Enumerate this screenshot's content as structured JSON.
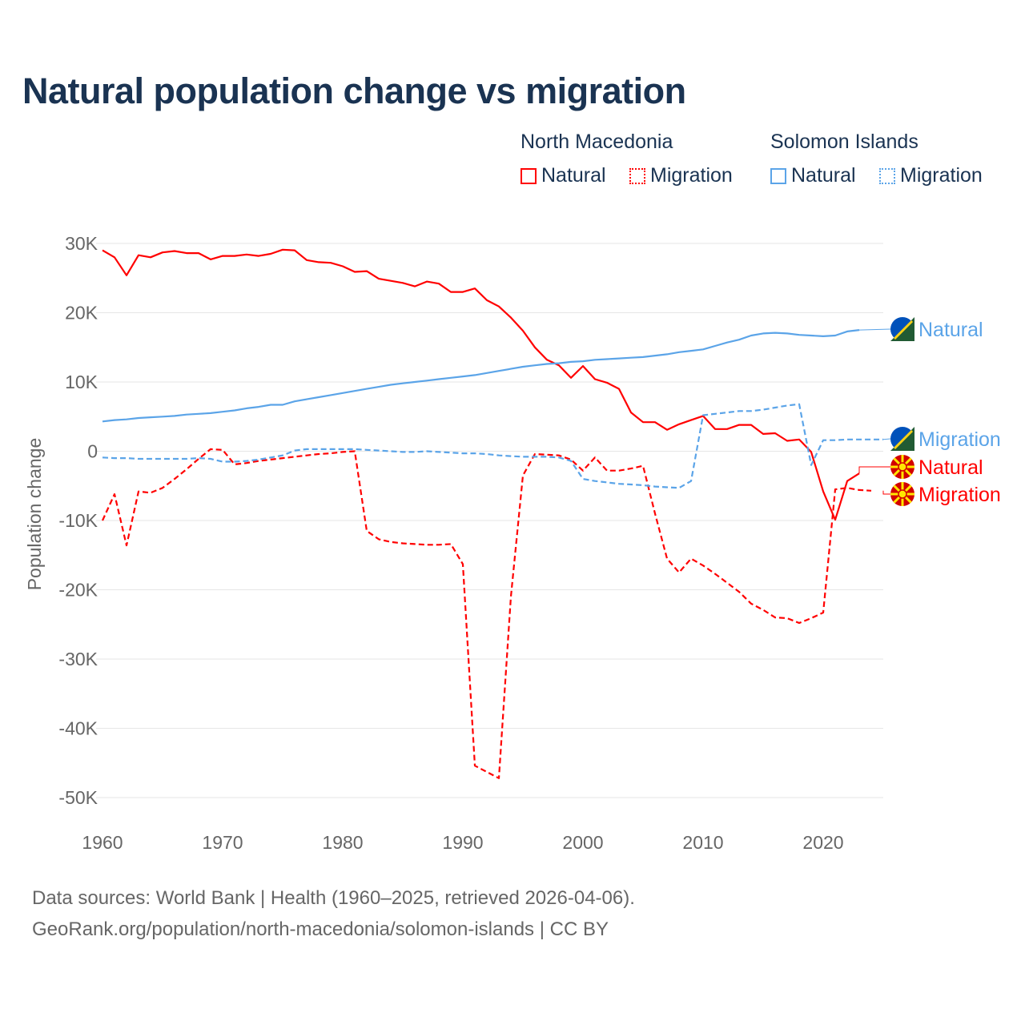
{
  "chart_data": {
    "type": "line",
    "title": "Natural population change vs migration",
    "xlabel": "",
    "ylabel": "Population change",
    "xlim": [
      1960,
      2025
    ],
    "ylim": [
      -50000,
      30000
    ],
    "x_ticks": [
      "1960",
      "1970",
      "1980",
      "1990",
      "2000",
      "2010",
      "2020"
    ],
    "y_ticks": [
      "30K",
      "20K",
      "10K",
      "0",
      "-10K",
      "-20K",
      "-30K",
      "-40K",
      "-50K"
    ],
    "grid": true,
    "legend": {
      "placement": "top-right",
      "groups": [
        {
          "country": "North Macedonia",
          "items": [
            "Natural",
            "Migration"
          ]
        },
        {
          "country": "Solomon Islands",
          "items": [
            "Natural",
            "Migration"
          ]
        }
      ]
    },
    "series": [
      {
        "name": "North Macedonia Natural",
        "country": "North Macedonia",
        "kind": "Natural",
        "color": "#ff0000",
        "dash": false,
        "start": 1960,
        "values": [
          29000,
          28000,
          25400,
          28300,
          28000,
          28700,
          28900,
          28600,
          28600,
          27700,
          28200,
          28200,
          28400,
          28200,
          28500,
          29100,
          29000,
          27600,
          27300,
          27200,
          26700,
          25900,
          26000,
          24900,
          24600,
          24300,
          23800,
          24500,
          24200,
          23000,
          23000,
          23500,
          21800,
          20900,
          19300,
          17400,
          15000,
          13200,
          12400,
          10600,
          12300,
          10400,
          9900,
          9000,
          5600,
          4200,
          4200,
          3100,
          3900,
          4500,
          5100,
          3200,
          3200,
          3800,
          3800,
          2500,
          2600,
          1500,
          1700,
          -100,
          -5800,
          -9900,
          -4300,
          -3200
        ]
      },
      {
        "name": "North Macedonia Migration",
        "country": "North Macedonia",
        "kind": "Migration",
        "color": "#ff0000",
        "dash": true,
        "start": 1960,
        "values": [
          -10000,
          -6200,
          -13600,
          -5800,
          -6000,
          -5300,
          -4000,
          -2600,
          -1100,
          300,
          200,
          -1900,
          -1700,
          -1400,
          -1200,
          -1000,
          -800,
          -600,
          -400,
          -300,
          -100,
          0,
          -11500,
          -12700,
          -13100,
          -13300,
          -13400,
          -13500,
          -13500,
          -13400,
          -16300,
          -45400,
          -46300,
          -47200,
          -21000,
          -3500,
          -400,
          -500,
          -600,
          -1200,
          -2800,
          -900,
          -2800,
          -2800,
          -2500,
          -2100,
          -9000,
          -15500,
          -17500,
          -15500,
          -16500,
          -17700,
          -19000,
          -20300,
          -22000,
          -22900,
          -24000,
          -24100,
          -24800,
          -24100,
          -23300,
          -5500,
          -5300,
          -5600,
          -5700
        ]
      },
      {
        "name": "Solomon Islands Natural",
        "country": "Solomon Islands",
        "kind": "Natural",
        "color": "#5ba4e8",
        "dash": false,
        "start": 1960,
        "values": [
          4300,
          4500,
          4600,
          4800,
          4900,
          5000,
          5100,
          5300,
          5400,
          5500,
          5700,
          5900,
          6200,
          6400,
          6700,
          6700,
          7200,
          7500,
          7800,
          8100,
          8400,
          8700,
          9000,
          9300,
          9600,
          9800,
          10000,
          10200,
          10400,
          10600,
          10800,
          11000,
          11300,
          11600,
          11900,
          12200,
          12400,
          12600,
          12700,
          12900,
          13000,
          13200,
          13300,
          13400,
          13500,
          13600,
          13800,
          14000,
          14300,
          14500,
          14700,
          15200,
          15700,
          16100,
          16700,
          17000,
          17100,
          17000,
          16800,
          16700,
          16600,
          16700,
          17300,
          17500
        ]
      },
      {
        "name": "Solomon Islands Migration",
        "country": "Solomon Islands",
        "kind": "Migration",
        "color": "#5ba4e8",
        "dash": true,
        "start": 1960,
        "values": [
          -900,
          -1000,
          -1000,
          -1100,
          -1100,
          -1100,
          -1100,
          -1100,
          -1000,
          -1100,
          -1500,
          -1500,
          -1400,
          -1200,
          -900,
          -600,
          100,
          300,
          300,
          300,
          300,
          300,
          200,
          100,
          0,
          -100,
          -100,
          0,
          -100,
          -200,
          -300,
          -300,
          -400,
          -600,
          -700,
          -800,
          -800,
          -800,
          -900,
          -1400,
          -4000,
          -4300,
          -4500,
          -4700,
          -4800,
          -4900,
          -5100,
          -5200,
          -5300,
          -4300,
          5200,
          5400,
          5600,
          5800,
          5800,
          6000,
          6300,
          6600,
          6800,
          -2000,
          1600,
          1600,
          1700,
          1700,
          1700,
          1700
        ]
      }
    ],
    "end_labels": [
      {
        "text": "Natural",
        "country": "Solomon Islands",
        "color": "#5ba4e8",
        "flag": "solomon-islands"
      },
      {
        "text": "Migration",
        "country": "Solomon Islands",
        "color": "#5ba4e8",
        "flag": "solomon-islands"
      },
      {
        "text": "Natural",
        "country": "North Macedonia",
        "color": "#ff0000",
        "flag": "north-macedonia"
      },
      {
        "text": "Migration",
        "country": "North Macedonia",
        "color": "#ff0000",
        "flag": "north-macedonia"
      }
    ]
  },
  "footer": {
    "line1": "Data sources: World Bank | Health (1960–2025, retrieved 2026-04-06).",
    "line2": "GeoRank.org/population/north-macedonia/solomon-islands | CC BY"
  }
}
